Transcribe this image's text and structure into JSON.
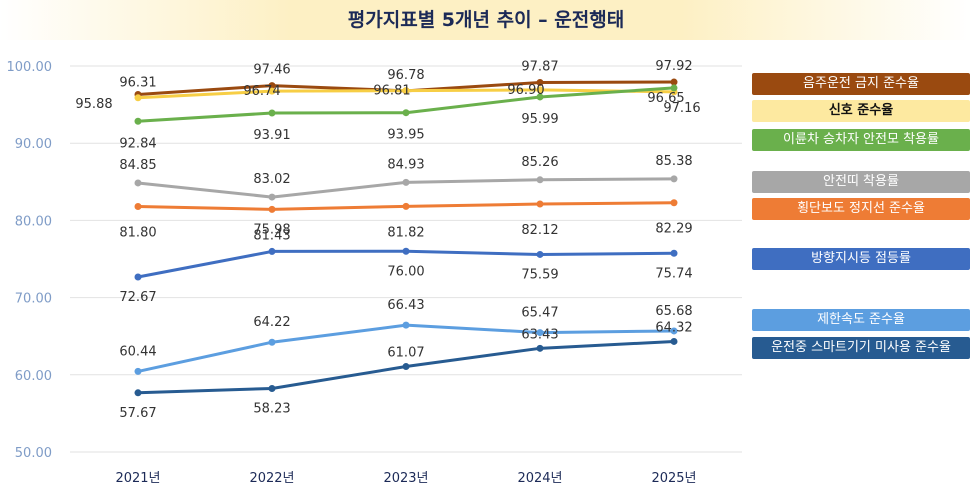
{
  "title": "평가지표별 5개년 추이 – 운전행태",
  "chart_data": {
    "type": "line",
    "title": "평가지표별 5개년 추이 – 운전행태",
    "categories": [
      "2021년",
      "2022년",
      "2023년",
      "2024년",
      "2025년"
    ],
    "ylim": [
      50,
      100
    ],
    "yticks": [
      "50.00",
      "60.00",
      "70.00",
      "80.00",
      "90.00",
      "100.00"
    ],
    "grid": true,
    "legend_position": "right",
    "series": [
      {
        "name": "음주운전 금지 준수율",
        "values": [
          96.31,
          97.46,
          96.78,
          97.87,
          97.92
        ],
        "labels": [
          "96.31",
          "97.46",
          "96.78",
          "97.87",
          "97.92"
        ],
        "color": "#9a4a10",
        "legend_text_color": "#ffffff"
      },
      {
        "name": "신호 준수율",
        "values": [
          95.88,
          96.74,
          96.81,
          96.9,
          96.65
        ],
        "labels": [
          "95.88",
          "96.74",
          "96.81",
          "96.90",
          "96.65"
        ],
        "color": "#f7ce45",
        "legend_bg": "#fde9a0",
        "legend_text_color": "#111111"
      },
      {
        "name": "이륜차 승차자 안전모 착용률",
        "values": [
          92.84,
          93.91,
          93.95,
          95.99,
          97.16
        ],
        "labels": [
          "92.84",
          "93.91",
          "93.95",
          "95.99",
          "97.16"
        ],
        "color": "#6ab04c",
        "legend_text_color": "#ffffff"
      },
      {
        "name": "안전띠 착용률",
        "values": [
          84.85,
          83.02,
          84.93,
          85.26,
          85.38
        ],
        "labels": [
          "84.85",
          "83.02",
          "84.93",
          "85.26",
          "85.38"
        ],
        "color": "#a7a7a7",
        "legend_text_color": "#ffffff"
      },
      {
        "name": "횡단보도 정지선 준수율",
        "values": [
          81.8,
          81.43,
          81.82,
          82.12,
          82.29
        ],
        "labels": [
          "81.80",
          "81.43",
          "81.82",
          "82.12",
          "82.29"
        ],
        "color": "#ee7c35",
        "legend_text_color": "#ffffff"
      },
      {
        "name": "방향지시등 점등률",
        "values": [
          72.67,
          75.98,
          76.0,
          75.59,
          75.74
        ],
        "labels": [
          "72.67",
          "75.98",
          "76.00",
          "75.59",
          "75.74"
        ],
        "color": "#3f6ec1",
        "legend_text_color": "#ffffff"
      },
      {
        "name": "제한속도 준수율",
        "values": [
          60.44,
          64.22,
          66.43,
          65.47,
          65.68
        ],
        "labels": [
          "60.44",
          "64.22",
          "66.43",
          "65.47",
          "65.68"
        ],
        "color": "#5c9ee0",
        "legend_text_color": "#ffffff"
      },
      {
        "name": "운전중 스마트기기 미사용 준수율",
        "values": [
          57.67,
          58.23,
          61.07,
          63.43,
          64.32
        ],
        "labels": [
          "57.67",
          "58.23",
          "61.07",
          "63.43",
          "64.32"
        ],
        "color": "#275b91",
        "legend_text_color": "#ffffff"
      }
    ]
  }
}
